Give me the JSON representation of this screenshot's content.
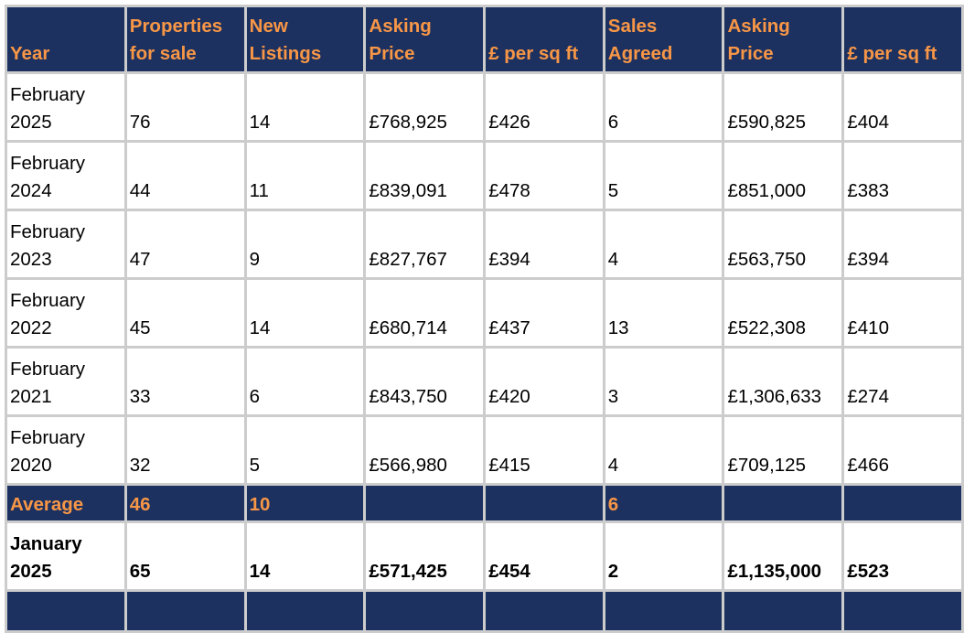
{
  "headers": [
    "Year",
    "Properties for sale",
    "New Listings",
    "Asking Price",
    "£ per sq ft",
    "Sales Agreed",
    "Asking Price",
    "£ per sq ft"
  ],
  "rows": [
    [
      "February 2025",
      "76",
      "14",
      "£768,925",
      "£426",
      "6",
      "£590,825",
      "£404"
    ],
    [
      "February 2024",
      "44",
      "11",
      "£839,091",
      "£478",
      "5",
      "£851,000",
      "£383"
    ],
    [
      "February 2023",
      "47",
      "9",
      "£827,767",
      "£394",
      "4",
      "£563,750",
      "£394"
    ],
    [
      "February 2022",
      "45",
      "14",
      "£680,714",
      "£437",
      "13",
      "£522,308",
      "£410"
    ],
    [
      "February 2021",
      "33",
      "6",
      "£843,750",
      "£420",
      "3",
      "£1,306,633",
      "£274"
    ],
    [
      "February 2020",
      "32",
      "5",
      "£566,980",
      "£415",
      "4",
      "£709,125",
      "£466"
    ]
  ],
  "average": [
    "Average",
    "46",
    "10",
    "",
    "",
    "6",
    "",
    ""
  ],
  "current": [
    "January 2025",
    "65",
    "14",
    "£571,425",
    "£454",
    "2",
    "£1,135,000",
    "£523"
  ],
  "colors": {
    "header_bg": "#1c3160",
    "header_text": "#f79646",
    "border": "#cccccc"
  }
}
